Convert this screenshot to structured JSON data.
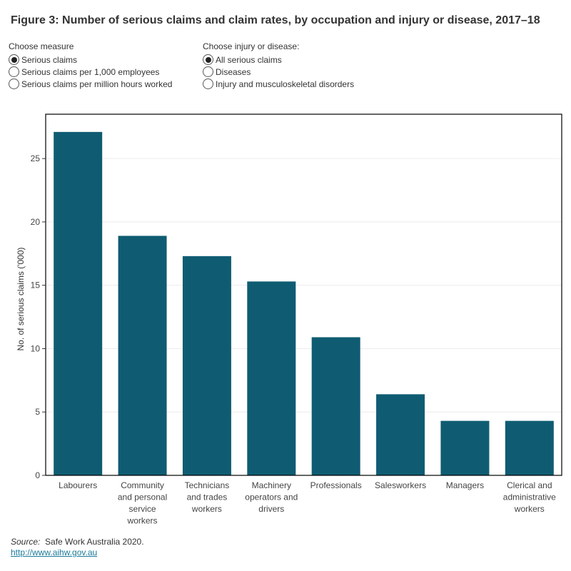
{
  "title": "Figure 3: Number of serious claims and claim rates, by occupation and injury or disease, 2017–18",
  "filters": {
    "measure": {
      "label": "Choose measure",
      "options": [
        {
          "label": "Serious claims",
          "selected": true
        },
        {
          "label": "Serious claims per 1,000 employees",
          "selected": false
        },
        {
          "label": "Serious claims per million hours worked",
          "selected": false
        }
      ]
    },
    "injury": {
      "label": "Choose injury or disease:",
      "options": [
        {
          "label": "All serious claims",
          "selected": true
        },
        {
          "label": "Diseases",
          "selected": false
        },
        {
          "label": "Injury and musculoskeletal disorders",
          "selected": false
        }
      ]
    }
  },
  "chart_data": {
    "type": "bar",
    "title": "Figure 3: Number of serious claims and claim rates, by occupation and injury or disease, 2017–18",
    "xlabel": "",
    "ylabel": "No. of serious claims ('000)",
    "ylim": [
      0,
      28.5
    ],
    "yticks": [
      0,
      5,
      10,
      15,
      20,
      25
    ],
    "grid": true,
    "bar_color": "#0f5c72",
    "categories": [
      [
        "Labourers"
      ],
      [
        "Community",
        "and personal",
        "service",
        "workers"
      ],
      [
        "Technicians",
        "and trades",
        "workers"
      ],
      [
        "Machinery",
        "operators and",
        "drivers"
      ],
      [
        "Professionals"
      ],
      [
        "Salesworkers"
      ],
      [
        "Managers"
      ],
      [
        "Clerical and",
        "administrative",
        "workers"
      ]
    ],
    "values": [
      27.1,
      18.9,
      17.3,
      15.3,
      10.9,
      6.4,
      4.3,
      4.3
    ]
  },
  "source": {
    "label": "Source:",
    "text": "Safe Work Australia 2020.",
    "link": "http://www.aihw.gov.au"
  }
}
